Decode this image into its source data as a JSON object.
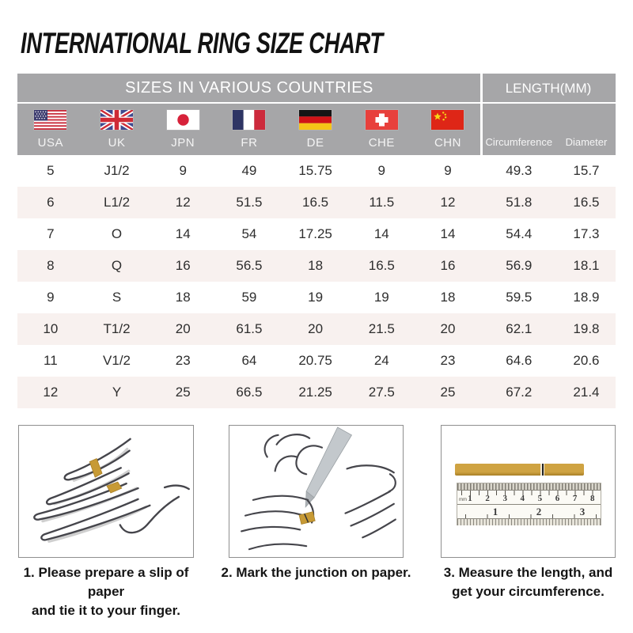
{
  "title": "INTERNATIONAL RING SIZE CHART",
  "table": {
    "group_headers": {
      "sizes": "SIZES IN VARIOUS COUNTRIES",
      "length": "LENGTH(MM)"
    },
    "columns": [
      {
        "code": "USA",
        "flag": "usa-flag"
      },
      {
        "code": "UK",
        "flag": "uk-flag"
      },
      {
        "code": "JPN",
        "flag": "japan-flag"
      },
      {
        "code": "FR",
        "flag": "france-flag"
      },
      {
        "code": "DE",
        "flag": "germany-flag"
      },
      {
        "code": "CHE",
        "flag": "switzerland-flag"
      },
      {
        "code": "CHN",
        "flag": "china-flag"
      }
    ],
    "length_columns": [
      "Circumference",
      "Diameter"
    ],
    "rows": [
      [
        "5",
        "J1/2",
        "9",
        "49",
        "15.75",
        "9",
        "9",
        "49.3",
        "15.7"
      ],
      [
        "6",
        "L1/2",
        "12",
        "51.5",
        "16.5",
        "11.5",
        "12",
        "51.8",
        "16.5"
      ],
      [
        "7",
        "O",
        "14",
        "54",
        "17.25",
        "14",
        "14",
        "54.4",
        "17.3"
      ],
      [
        "8",
        "Q",
        "16",
        "56.5",
        "18",
        "16.5",
        "16",
        "56.9",
        "18.1"
      ],
      [
        "9",
        "S",
        "18",
        "59",
        "19",
        "19",
        "18",
        "59.5",
        "18.9"
      ],
      [
        "10",
        "T1/2",
        "20",
        "61.5",
        "20",
        "21.5",
        "20",
        "62.1",
        "19.8"
      ],
      [
        "11",
        "V1/2",
        "23",
        "64",
        "20.75",
        "24",
        "23",
        "64.6",
        "20.6"
      ],
      [
        "12",
        "Y",
        "25",
        "66.5",
        "21.25",
        "27.5",
        "25",
        "67.2",
        "21.4"
      ]
    ]
  },
  "steps": [
    {
      "caption_line1": "1. Please prepare a slip of paper",
      "caption_line2": "and tie it to your finger."
    },
    {
      "caption_line1": "2. Mark the junction on paper.",
      "caption_line2": ""
    },
    {
      "caption_line1": "3. Measure the length, and",
      "caption_line2": "get your circumference.",
      "ruler": {
        "unit_label": "mm",
        "cm_numbers": [
          "1",
          "2",
          "3",
          "4",
          "5",
          "6",
          "7",
          "8"
        ],
        "inch_numbers": [
          "1",
          "2",
          "3"
        ]
      }
    }
  ],
  "colors": {
    "header_gray": "#a6a6a8",
    "row_stripe": "#f8f1ef",
    "paper_gold": "#c79a35",
    "text_dark": "#2e2e2e"
  }
}
